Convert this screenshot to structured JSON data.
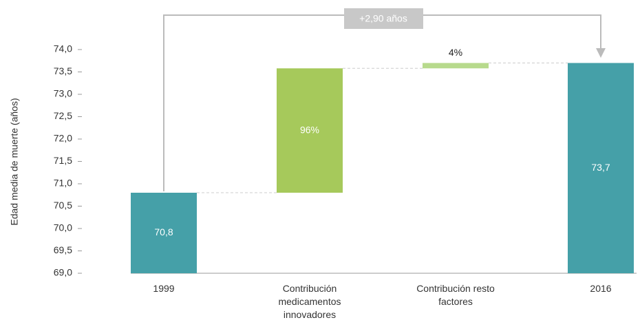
{
  "chart_data": {
    "type": "waterfall",
    "y_label": "Edad media de muerte (años)",
    "annotation": "+2,90 años",
    "categories": [
      "1999",
      "Contribución medicamentos innovadores",
      "Contribución resto factores",
      "2016"
    ],
    "values": [
      70.8,
      2.78,
      0.12,
      73.7
    ],
    "is_total": [
      true,
      false,
      false,
      true
    ],
    "value_labels": [
      "70,8",
      null,
      null,
      "73,7"
    ],
    "share_labels": [
      null,
      "96%",
      "4%",
      null
    ],
    "colors": [
      "#45a0a8",
      "#a6c95b",
      "#b7da8c",
      "#45a0a8"
    ],
    "ylim": [
      69,
      74
    ],
    "yticks": [
      {
        "value": 69,
        "label": "69,0"
      },
      {
        "value": 69.5,
        "label": "69,5"
      },
      {
        "value": 70,
        "label": "70,0"
      },
      {
        "value": 70.5,
        "label": "70,5"
      },
      {
        "value": 71,
        "label": "71,0"
      },
      {
        "value": 71.5,
        "label": "71,5"
      },
      {
        "value": 72,
        "label": "72,0"
      },
      {
        "value": 72.5,
        "label": "72,5"
      },
      {
        "value": 73,
        "label": "73,0"
      },
      {
        "value": 73.5,
        "label": "73,5"
      },
      {
        "value": 74,
        "label": "74,0"
      }
    ]
  }
}
